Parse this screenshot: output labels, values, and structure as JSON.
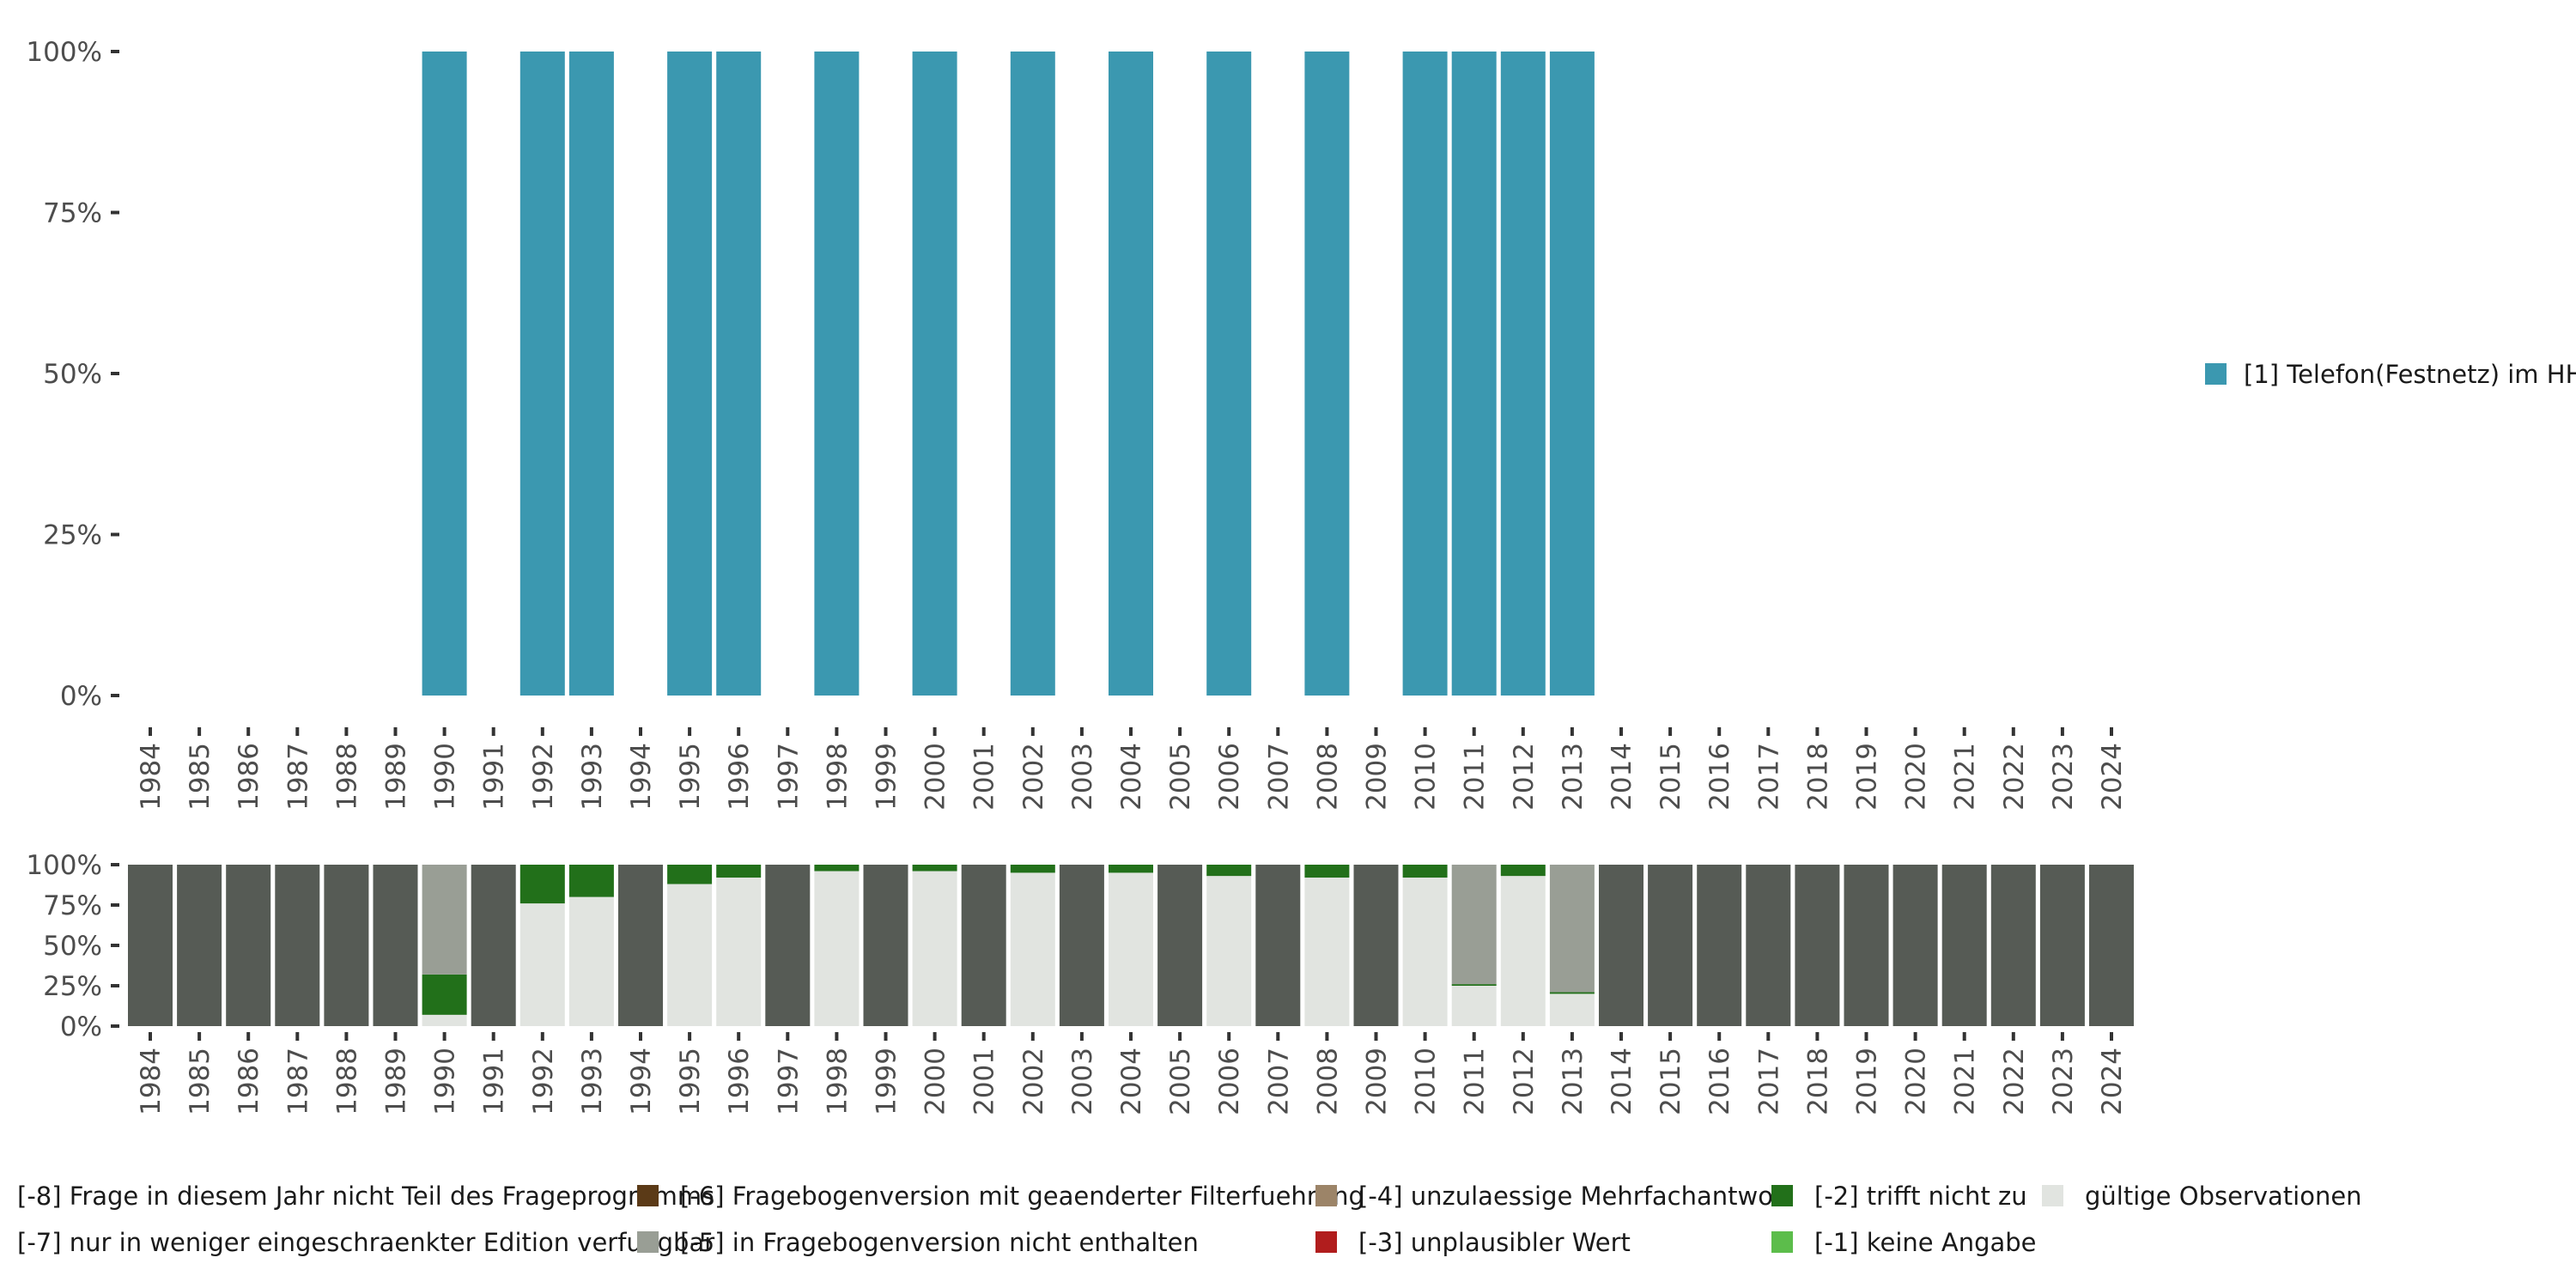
{
  "chart_data": [
    {
      "type": "bar",
      "title": "",
      "xlabel": "",
      "ylabel": "",
      "ylim": [
        0,
        100
      ],
      "y_ticks": [
        "0%",
        "25%",
        "50%",
        "75%",
        "100%"
      ],
      "categories": [
        "1984",
        "1985",
        "1986",
        "1987",
        "1988",
        "1989",
        "1990",
        "1991",
        "1992",
        "1993",
        "1994",
        "1995",
        "1996",
        "1997",
        "1998",
        "1999",
        "2000",
        "2001",
        "2002",
        "2003",
        "2004",
        "2005",
        "2006",
        "2007",
        "2008",
        "2009",
        "2010",
        "2011",
        "2012",
        "2013",
        "2014",
        "2015",
        "2016",
        "2017",
        "2018",
        "2019",
        "2020",
        "2021",
        "2022",
        "2023",
        "2024"
      ],
      "series": [
        {
          "name": "[1] Telefon(Festnetz) im HH",
          "color": "#3b98b0",
          "values": [
            0,
            0,
            0,
            0,
            0,
            0,
            100,
            0,
            100,
            100,
            0,
            100,
            100,
            0,
            100,
            0,
            100,
            0,
            100,
            0,
            100,
            0,
            100,
            0,
            100,
            0,
            100,
            100,
            100,
            100,
            0,
            0,
            0,
            0,
            0,
            0,
            0,
            0,
            0,
            0,
            0
          ]
        }
      ],
      "legend_position": "right"
    },
    {
      "type": "bar",
      "stacked": true,
      "ylim": [
        0,
        100
      ],
      "y_ticks": [
        "0%",
        "25%",
        "50%",
        "75%",
        "100%"
      ],
      "categories": [
        "1984",
        "1985",
        "1986",
        "1987",
        "1988",
        "1989",
        "1990",
        "1991",
        "1992",
        "1993",
        "1994",
        "1995",
        "1996",
        "1997",
        "1998",
        "1999",
        "2000",
        "2001",
        "2002",
        "2003",
        "2004",
        "2005",
        "2006",
        "2007",
        "2008",
        "2009",
        "2010",
        "2011",
        "2012",
        "2013",
        "2014",
        "2015",
        "2016",
        "2017",
        "2018",
        "2019",
        "2020",
        "2021",
        "2022",
        "2023",
        "2024"
      ],
      "series": [
        {
          "name": "gültige Observationen",
          "color": "#e1e4e0",
          "values": [
            0,
            0,
            0,
            0,
            0,
            0,
            7,
            0,
            76,
            80,
            0,
            88,
            92,
            0,
            96,
            0,
            96,
            0,
            95,
            0,
            95,
            0,
            93,
            0,
            92,
            0,
            92,
            25,
            93,
            20,
            0,
            0,
            0,
            0,
            0,
            0,
            0,
            0,
            0,
            0,
            0
          ]
        },
        {
          "name": "[-1] keine Angabe",
          "color": "#5cbd4b",
          "values": [
            0,
            0,
            0,
            0,
            0,
            0,
            0,
            0,
            0,
            0,
            0,
            0,
            0,
            0,
            0,
            0,
            0,
            0,
            0,
            0,
            0,
            0,
            0,
            0,
            0,
            0,
            0,
            0,
            0,
            0,
            0,
            0,
            0,
            0,
            0,
            0,
            0,
            0,
            0,
            0,
            0
          ]
        },
        {
          "name": "[-2] trifft nicht zu",
          "color": "#22701a",
          "values": [
            0,
            0,
            0,
            0,
            0,
            0,
            25,
            0,
            24,
            20,
            0,
            12,
            8,
            0,
            4,
            0,
            4,
            0,
            5,
            0,
            5,
            0,
            7,
            0,
            8,
            0,
            8,
            1,
            7,
            1,
            0,
            0,
            0,
            0,
            0,
            0,
            0,
            0,
            0,
            0,
            0
          ]
        },
        {
          "name": "[-3] unplausibler Wert",
          "color": "#b11d1d",
          "values": [
            0,
            0,
            0,
            0,
            0,
            0,
            0,
            0,
            0,
            0,
            0,
            0,
            0,
            0,
            0,
            0,
            0,
            0,
            0,
            0,
            0,
            0,
            0,
            0,
            0,
            0,
            0,
            0,
            0,
            0,
            0,
            0,
            0,
            0,
            0,
            0,
            0,
            0,
            0,
            0,
            0
          ]
        },
        {
          "name": "[-4] unzulaessige Mehrfachantwort",
          "color": "#9c8468",
          "values": [
            0,
            0,
            0,
            0,
            0,
            0,
            0,
            0,
            0,
            0,
            0,
            0,
            0,
            0,
            0,
            0,
            0,
            0,
            0,
            0,
            0,
            0,
            0,
            0,
            0,
            0,
            0,
            0,
            0,
            0,
            0,
            0,
            0,
            0,
            0,
            0,
            0,
            0,
            0,
            0,
            0
          ]
        },
        {
          "name": "[-5] in Fragebogenversion nicht enthalten",
          "color": "#999e95",
          "values": [
            0,
            0,
            0,
            0,
            0,
            0,
            68,
            0,
            0,
            0,
            0,
            0,
            0,
            0,
            0,
            0,
            0,
            0,
            0,
            0,
            0,
            0,
            0,
            0,
            0,
            0,
            0,
            74,
            0,
            79,
            0,
            0,
            0,
            0,
            0,
            0,
            0,
            0,
            0,
            0,
            0
          ]
        },
        {
          "name": "[-6] Fragebogenversion mit geaenderter Filterfuehrung",
          "color": "#5b3a17",
          "values": [
            0,
            0,
            0,
            0,
            0,
            0,
            0,
            0,
            0,
            0,
            0,
            0,
            0,
            0,
            0,
            0,
            0,
            0,
            0,
            0,
            0,
            0,
            0,
            0,
            0,
            0,
            0,
            0,
            0,
            0,
            0,
            0,
            0,
            0,
            0,
            0,
            0,
            0,
            0,
            0,
            0
          ]
        },
        {
          "name": "[-7] nur in weniger eingeschraenkter Edition verfuegbar",
          "color": "#999e95",
          "values": [
            0,
            0,
            0,
            0,
            0,
            0,
            0,
            0,
            0,
            0,
            0,
            0,
            0,
            0,
            0,
            0,
            0,
            0,
            0,
            0,
            0,
            0,
            0,
            0,
            0,
            0,
            0,
            0,
            0,
            0,
            0,
            0,
            0,
            0,
            0,
            0,
            0,
            0,
            0,
            0,
            0
          ]
        },
        {
          "name": "[-8] Frage in diesem Jahr nicht Teil des Frageprogramms",
          "color": "#565b55",
          "values": [
            100,
            100,
            100,
            100,
            100,
            100,
            0,
            100,
            0,
            0,
            100,
            0,
            0,
            100,
            0,
            100,
            0,
            100,
            0,
            100,
            0,
            100,
            0,
            100,
            0,
            100,
            0,
            0,
            0,
            0,
            100,
            100,
            100,
            100,
            100,
            100,
            100,
            100,
            100,
            100,
            100
          ]
        }
      ],
      "legend_position": "bottom"
    }
  ],
  "legend_bottom_rows": [
    [
      "[-8] Frage in diesem Jahr nicht Teil des Frageprogramms",
      "[-6] Fragebogenversion mit geaenderter Filterfuehrung",
      "[-4] unzulaessige Mehrfachantwort",
      "[-2] trifft nicht zu",
      "gültige Observationen"
    ],
    [
      "[-7] nur in weniger eingeschraenkter Edition verfuegbar",
      "[-5] in Fragebogenversion nicht enthalten",
      "[-3] unplausibler Wert",
      "[-1] keine Angabe"
    ]
  ]
}
